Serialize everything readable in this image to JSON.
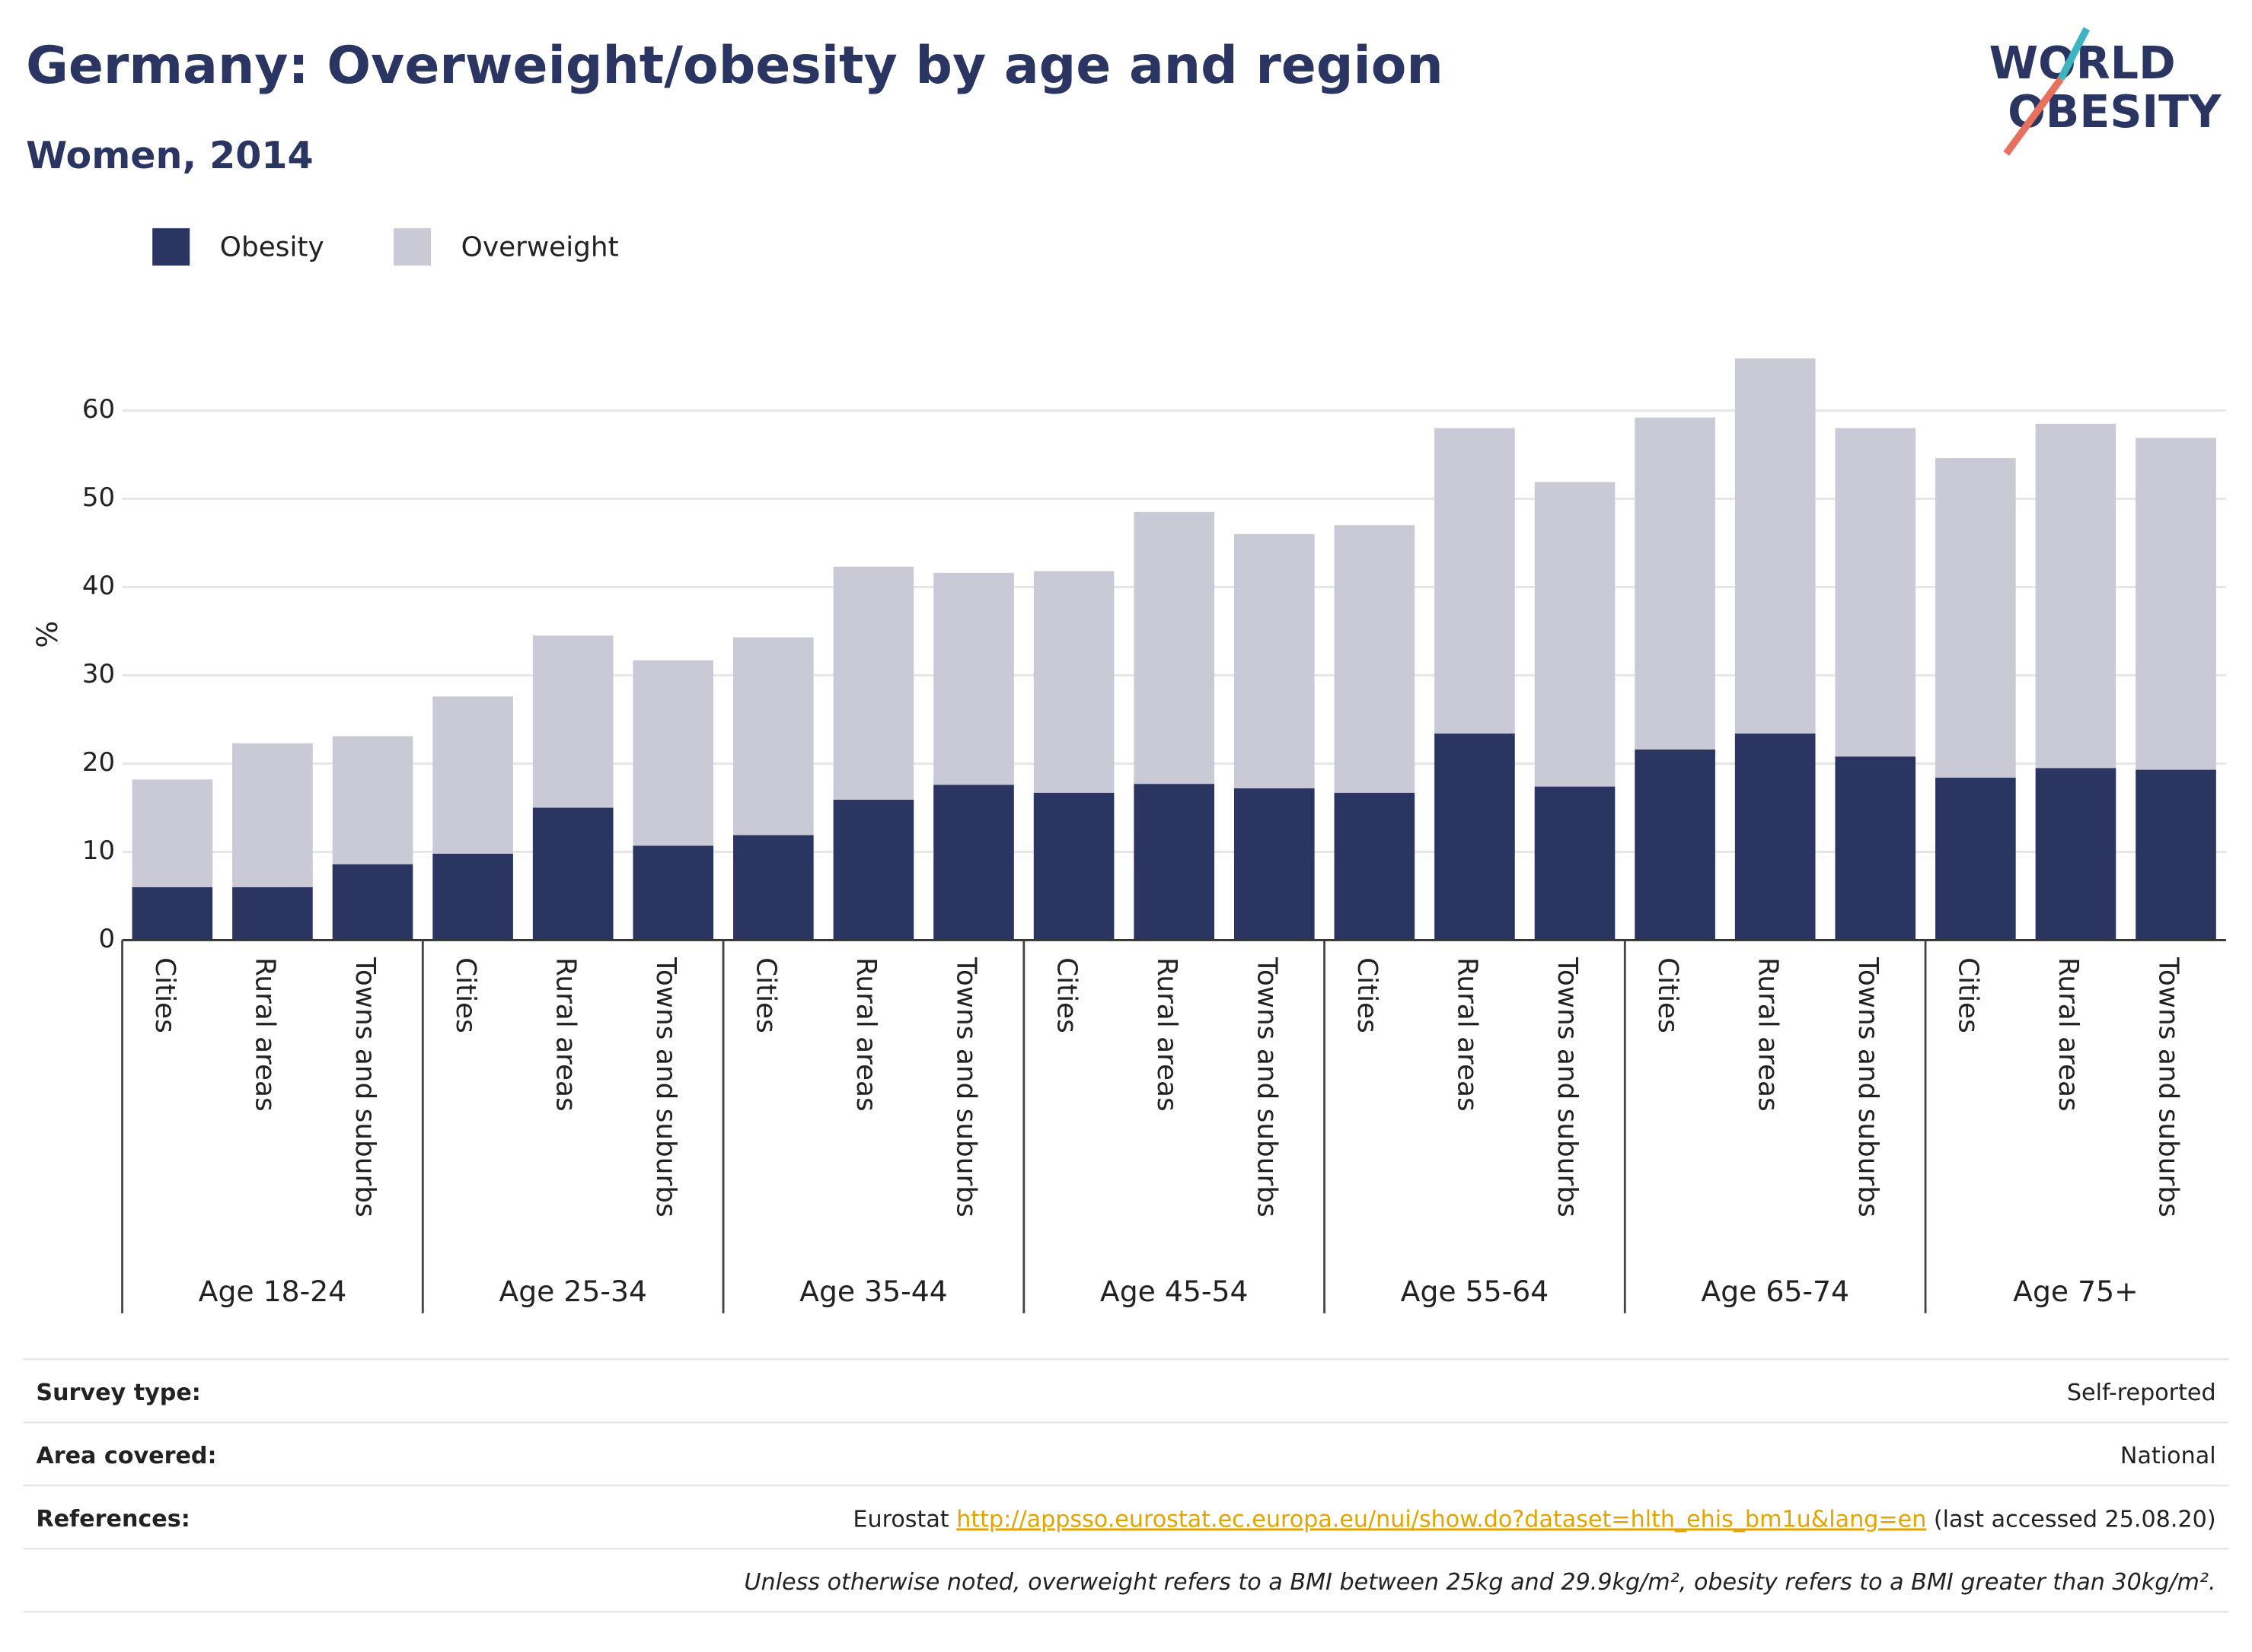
{
  "chart_data": {
    "type": "stacked_bar",
    "title": "Germany: Overweight/obesity by age and region",
    "subtitle": "Women, 2014",
    "y_label": "%",
    "logo": [
      "WORLD",
      "OBESITY"
    ],
    "groups": [
      "Age 18-24",
      "Age 25-34",
      "Age 35-44",
      "Age 45-54",
      "Age 55-64",
      "Age 65-74",
      "Age 75+"
    ],
    "categories": [
      "Cities",
      "Rural areas",
      "Towns and suburbs",
      "Cities",
      "Rural areas",
      "Towns and suburbs",
      "Cities",
      "Rural areas",
      "Towns and suburbs",
      "Cities",
      "Rural areas",
      "Towns and suburbs",
      "Cities",
      "Rural areas",
      "Towns and suburbs",
      "Cities",
      "Rural areas",
      "Towns and suburbs",
      "Cities",
      "Rural areas",
      "Towns and suburbs"
    ],
    "series": [
      {
        "name": "Obesity",
        "color": "#2b3561",
        "values": [
          6.0,
          6.0,
          8.6,
          9.8,
          15.0,
          10.7,
          11.9,
          15.9,
          17.6,
          16.7,
          17.7,
          17.2,
          16.7,
          23.4,
          17.4,
          21.6,
          23.4,
          20.8,
          18.4,
          19.5,
          19.3
        ]
      },
      {
        "name": "Overweight",
        "color": "#c9cad6",
        "values": [
          12.2,
          16.3,
          14.5,
          17.8,
          19.5,
          21.0,
          22.4,
          26.4,
          24.0,
          25.1,
          30.8,
          28.8,
          30.3,
          34.6,
          34.5,
          37.6,
          42.5,
          37.2,
          36.2,
          39.0,
          37.6
        ]
      }
    ],
    "ylim": [
      0,
      67
    ],
    "yticks": [
      0,
      10,
      20,
      30,
      40,
      50,
      60
    ],
    "grid": true
  },
  "footer": {
    "rows": [
      {
        "label": "Survey type:",
        "value": "Self-reported"
      },
      {
        "label": "Area covered:",
        "value": "National"
      }
    ],
    "references": {
      "label": "References:",
      "source": "Eurostat",
      "link": "http://appsso.eurostat.ec.europa.eu/nui/show.do?dataset=hlth_ehis_bm1u&lang=en",
      "accessed": "(last accessed 25.08.20)"
    },
    "note": "Unless otherwise noted, overweight refers to a BMI between 25kg and 29.9kg/m², obesity refers to a BMI greater than 30kg/m²."
  }
}
